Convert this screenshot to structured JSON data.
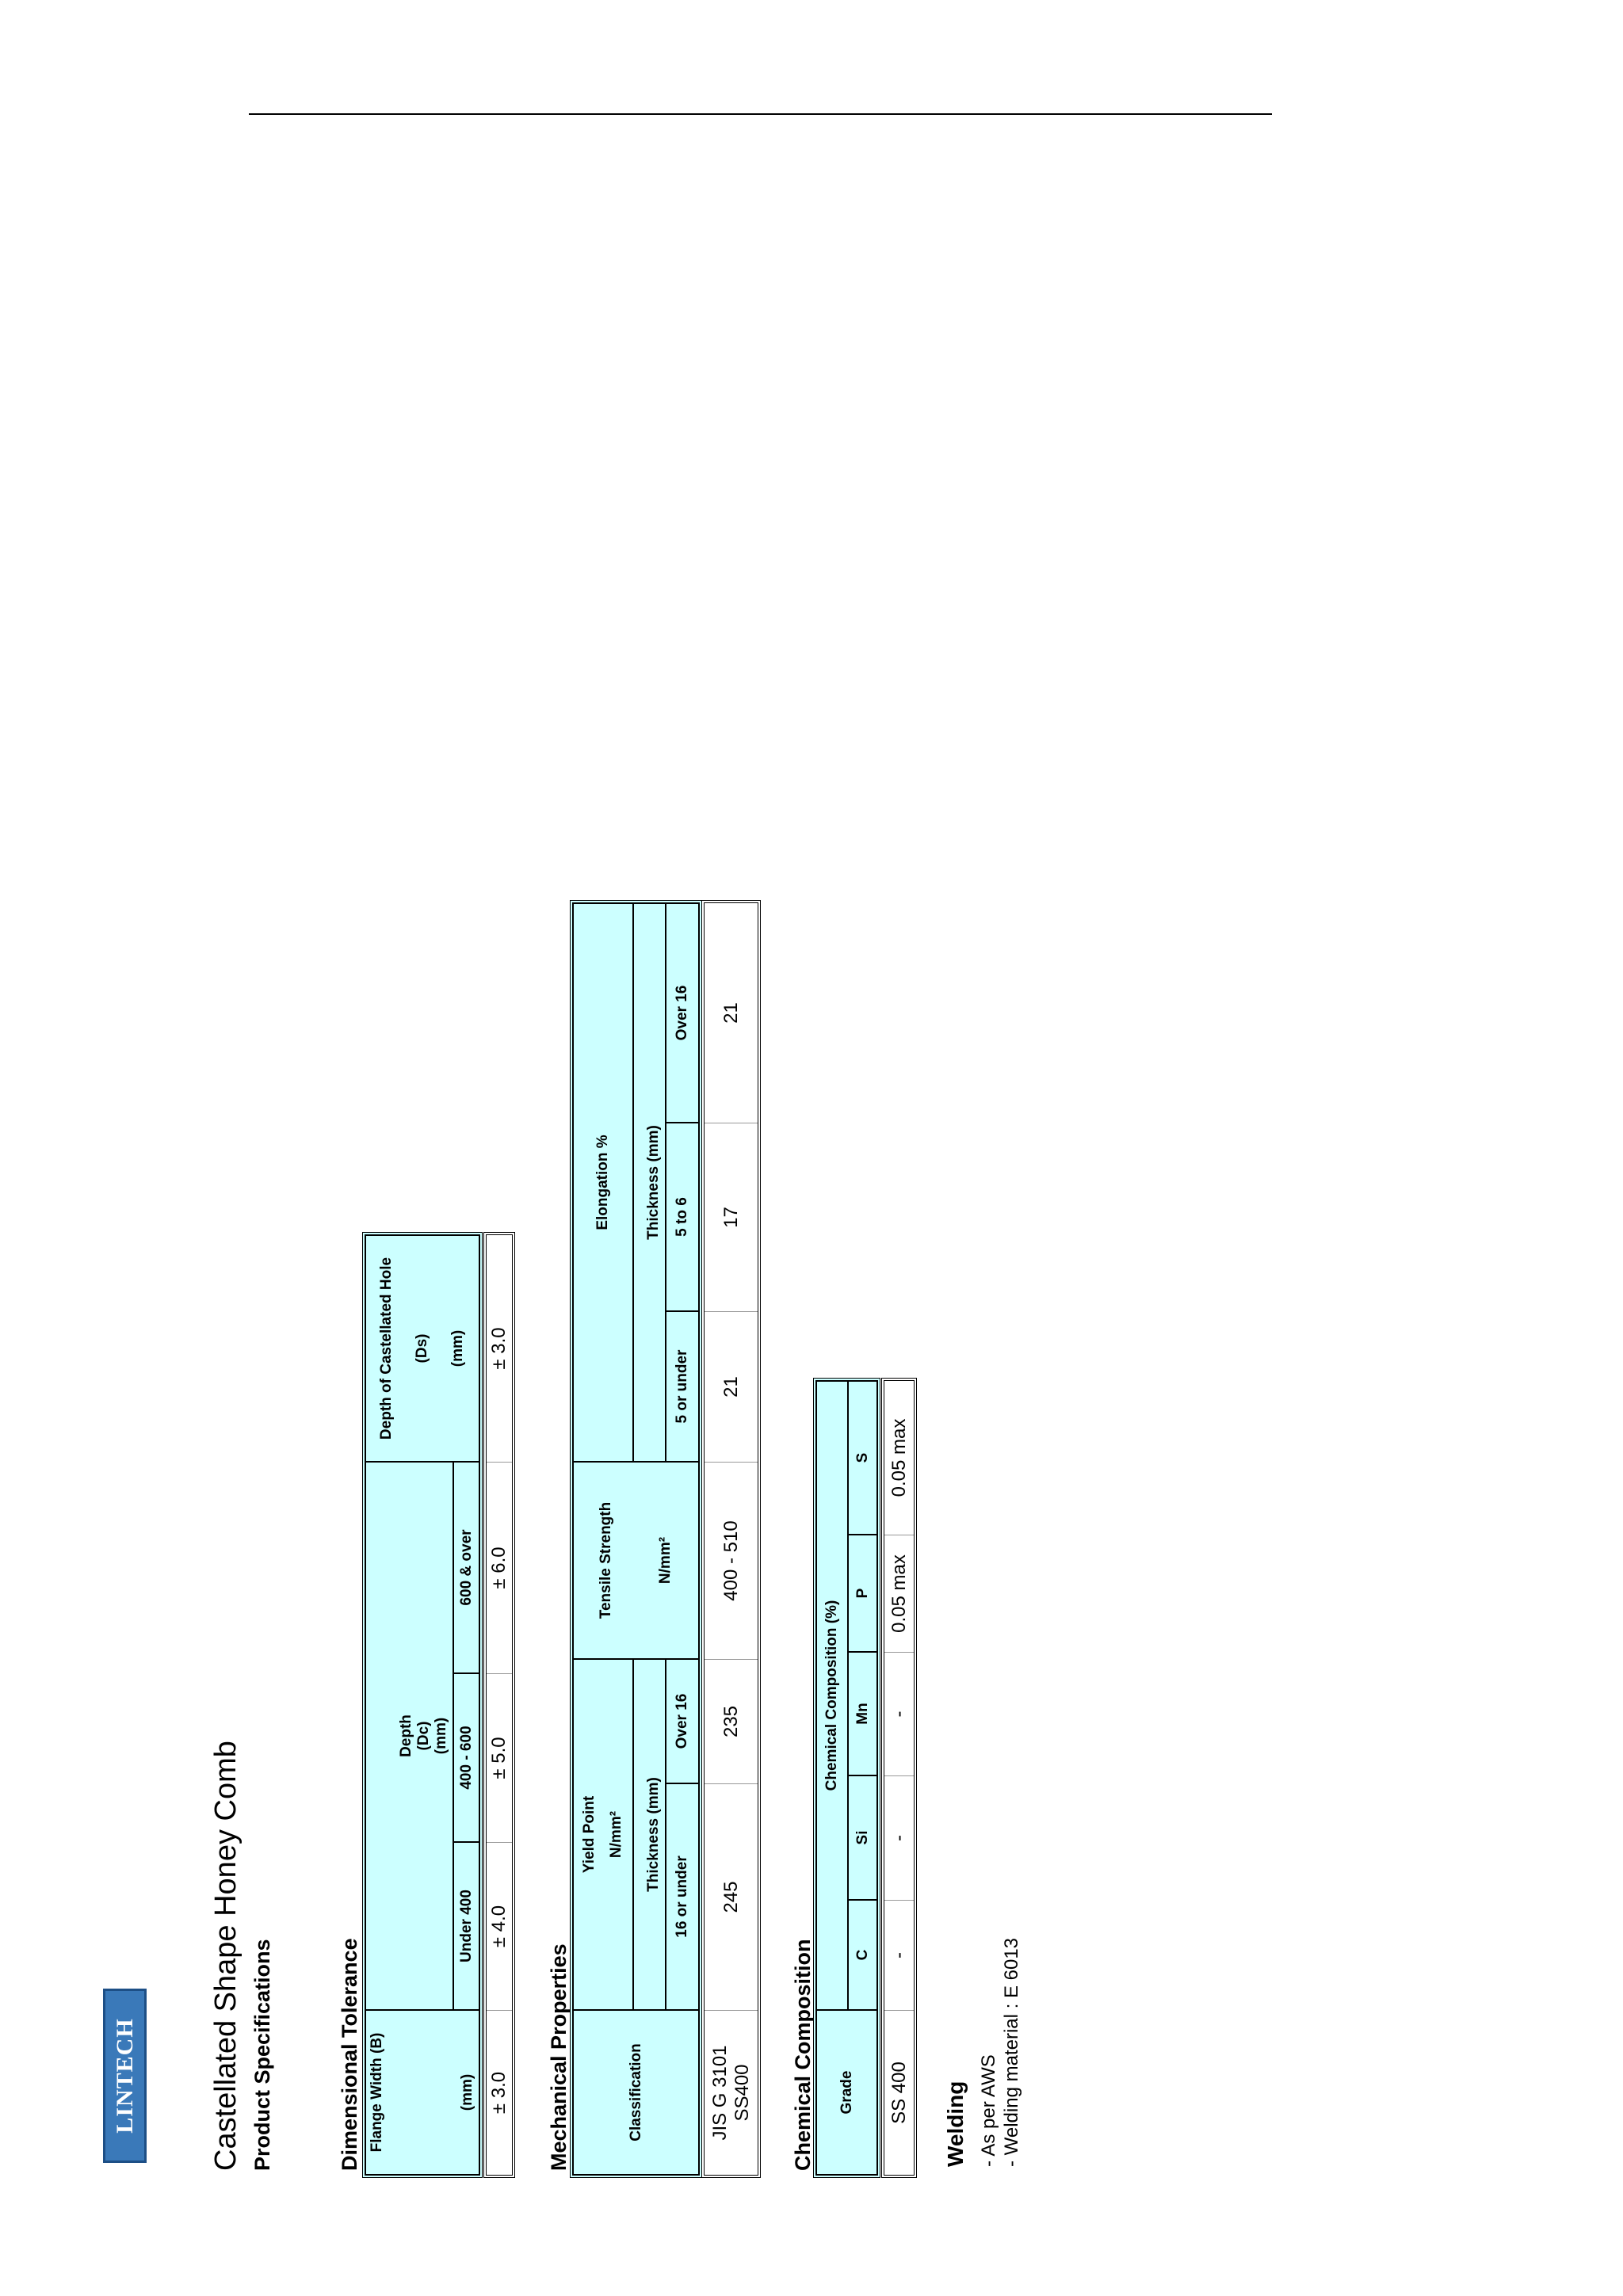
{
  "logo": "LINTECH",
  "title": "Castellated Shape Honey Comb",
  "subtitle": "Product Specifications",
  "dimensional_tolerance": {
    "title": "Dimensional Tolerance",
    "header": {
      "flange_width": [
        "Flange Width (B)",
        "(mm)"
      ],
      "depth": [
        "Depth",
        "(Dc)",
        "(mm)"
      ],
      "depth_ranges": [
        "Under 400",
        "400 - 600",
        "600 & over"
      ],
      "hole": [
        "Depth of Castellated Hole",
        "(Ds)",
        "(mm)"
      ]
    },
    "row": [
      "± 3.0",
      "± 4.0",
      "± 5.0",
      "± 6.0",
      "± 3.0"
    ]
  },
  "mechanical_properties": {
    "title": "Mechanical Properties",
    "header": {
      "classification": "Classification",
      "yield_point": [
        "Yield Point",
        "N/mm²"
      ],
      "yield_thickness": "Thickness (mm)",
      "yield_ranges": [
        "16 or under",
        "Over 16"
      ],
      "tensile_strength": [
        "Tensile Strength",
        "N/mm²"
      ],
      "elongation": "Elongation %",
      "elongation_thickness": "Thickness (mm)",
      "elongation_ranges": [
        "5 or under",
        "5 to 6",
        "Over 16"
      ]
    },
    "row": [
      [
        "JIS G 3101",
        "SS400"
      ],
      "245",
      "235",
      "400 - 510",
      "21",
      "17",
      "21"
    ]
  },
  "chemical_composition": {
    "title": "Chemical Composition",
    "header": {
      "grade": "Grade",
      "composition": "Chemical Composition (%)",
      "elements": [
        "C",
        "Si",
        "Mn",
        "P",
        "S"
      ]
    },
    "row": [
      "SS 400",
      "-",
      "-",
      "-",
      "0.05 max",
      "0.05 max"
    ]
  },
  "welding": {
    "title": "Welding",
    "items": [
      "- As per AWS",
      "- Welding material : E 6013"
    ]
  }
}
